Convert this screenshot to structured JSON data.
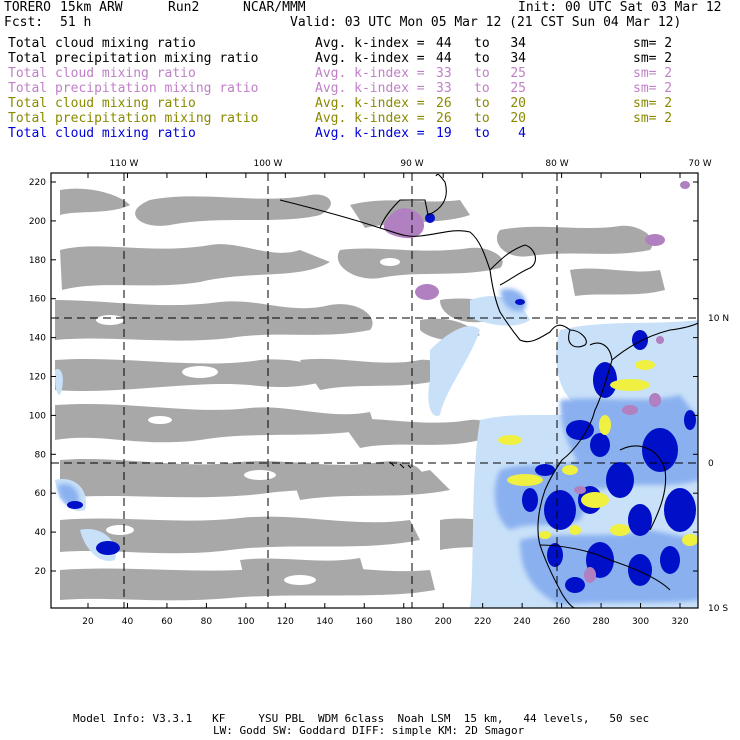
{
  "header": {
    "model": "TORERO",
    "resolution": "15km ARW",
    "run": "Run2",
    "org": "NCAR/MMM",
    "init": "Init: 00 UTC Sat 03 Mar 12",
    "fcst_label": "Fcst:",
    "fcst_value": "51 h",
    "valid": "Valid: 03 UTC Mon 05 Mar 12 (21 CST Sun 04 Mar 12)"
  },
  "legend": [
    {
      "field": "Total cloud mixing ratio",
      "index_label": "Avg. k-index =",
      "from": "44",
      "to_word": "to",
      "to": "34",
      "sm": "sm= 2",
      "color": "#000000"
    },
    {
      "field": "Total precipitation mixing ratio",
      "index_label": "Avg. k-index =",
      "from": "44",
      "to_word": "to",
      "to": "34",
      "sm": "sm= 2",
      "color": "#000000"
    },
    {
      "field": "Total cloud mixing ratio",
      "index_label": "Avg. k-index =",
      "from": "33",
      "to_word": "to",
      "to": "25",
      "sm": "sm= 2",
      "color": "#c080c8"
    },
    {
      "field": "Total precipitation mixing ratio",
      "index_label": "Avg. k-index =",
      "from": "33",
      "to_word": "to",
      "to": "25",
      "sm": "sm= 2",
      "color": "#c080c8"
    },
    {
      "field": "Total cloud mixing ratio",
      "index_label": "Avg. k-index =",
      "from": "26",
      "to_word": "to",
      "to": "20",
      "sm": "sm= 2",
      "color": "#8a8a00"
    },
    {
      "field": "Total precipitation mixing ratio",
      "index_label": "Avg. k-index =",
      "from": "26",
      "to_word": "to",
      "to": "20",
      "sm": "sm= 2",
      "color": "#8a8a00"
    },
    {
      "field": "Total cloud mixing ratio",
      "index_label": "Avg. k-index =",
      "from": "19",
      "to_word": "to",
      "to": "4",
      "sm": "",
      "color": "#0000d8"
    }
  ],
  "map": {
    "lon_labels": [
      "110 W",
      "100 W",
      "90 W",
      "80 W",
      "70 W"
    ],
    "lat_labels": [
      "10 N",
      "0",
      "10 S"
    ],
    "y_grid_labels": [
      "220",
      "200",
      "180",
      "160",
      "140",
      "120",
      "100",
      "80",
      "60",
      "40",
      "20"
    ],
    "x_grid_labels": [
      "20",
      "40",
      "60",
      "80",
      "100",
      "120",
      "140",
      "160",
      "180",
      "200",
      "220",
      "240",
      "260",
      "280",
      "300",
      "320"
    ],
    "colors": {
      "low_cloud": "#a8a8a8",
      "light_cloud": "#c8e0f8",
      "cloud_mid": "#8ab0f0",
      "cloud_heavy": "#0010c8",
      "precip_yellow": "#f0f040",
      "precip_purple": "#b080c0"
    }
  },
  "footer": {
    "line1": "Model Info: V3.3.1   KF     YSU PBL  WDM 6class  Noah LSM  15 km,   44 levels,   50 sec",
    "line2": "LW: Godd SW: Goddard DIFF: simple KM: 2D Smagor"
  }
}
